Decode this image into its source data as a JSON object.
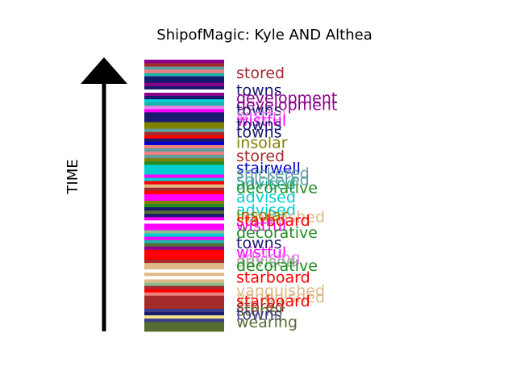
{
  "chart_data": {
    "type": "bar",
    "title": "ShipofMagic: Kyle AND Althea",
    "ylabel": "TIME",
    "orientation": "stacked-column",
    "direction": "bottom-to-top",
    "stripes": [
      {
        "color": "#556b2f",
        "weight": 3
      },
      {
        "color": "#3c3c8c",
        "weight": 1
      },
      {
        "color": "#f0e68c",
        "weight": 1
      },
      {
        "color": "#191970",
        "weight": 1
      },
      {
        "color": "#3c3c8c",
        "weight": 1
      },
      {
        "color": "#a52a2a",
        "weight": 4
      },
      {
        "color": "#f08080",
        "weight": 1
      },
      {
        "color": "#ff0000",
        "weight": 1
      },
      {
        "color": "#a52a2a",
        "weight": 1
      },
      {
        "color": "#8fbc8f",
        "weight": 1
      },
      {
        "color": "#deb887",
        "weight": 1
      },
      {
        "color": "#ffffff",
        "weight": 1
      },
      {
        "color": "#deb887",
        "weight": 1
      },
      {
        "color": "#ffffff",
        "weight": 1
      },
      {
        "color": "#deb887",
        "weight": 2
      },
      {
        "color": "#a52a2a",
        "weight": 1
      },
      {
        "color": "#ff0000",
        "weight": 3
      },
      {
        "color": "#8b008b",
        "weight": 1
      },
      {
        "color": "#556b2f",
        "weight": 1
      },
      {
        "color": "#20b2aa",
        "weight": 1
      },
      {
        "color": "#ff00ff",
        "weight": 1
      },
      {
        "color": "#00ced1",
        "weight": 1
      },
      {
        "color": "#8fbc8f",
        "weight": 1
      },
      {
        "color": "#ff00ff",
        "weight": 2
      },
      {
        "color": "#ffffff",
        "weight": 1
      },
      {
        "color": "#ff00ff",
        "weight": 1
      },
      {
        "color": "#191970",
        "weight": 1
      },
      {
        "color": "#556b2f",
        "weight": 1
      },
      {
        "color": "#191970",
        "weight": 1
      },
      {
        "color": "#228b22",
        "weight": 1
      },
      {
        "color": "#808000",
        "weight": 1
      },
      {
        "color": "#ff00ff",
        "weight": 2
      },
      {
        "color": "#ff0000",
        "weight": 1
      },
      {
        "color": "#a52a2a",
        "weight": 1
      },
      {
        "color": "#deb887",
        "weight": 1
      },
      {
        "color": "#ff0000",
        "weight": 1
      },
      {
        "color": "#00ced1",
        "weight": 1
      },
      {
        "color": "#ff00ff",
        "weight": 1
      },
      {
        "color": "#00ced1",
        "weight": 1
      },
      {
        "color": "#00ced1",
        "weight": 2
      },
      {
        "color": "#228b22",
        "weight": 1
      },
      {
        "color": "#808000",
        "weight": 1
      },
      {
        "color": "#5f9ea0",
        "weight": 1
      },
      {
        "color": "#f08080",
        "weight": 1
      },
      {
        "color": "#5f9ea0",
        "weight": 1
      },
      {
        "color": "#f08080",
        "weight": 1
      },
      {
        "color": "#0000cd",
        "weight": 1
      },
      {
        "color": "#191970",
        "weight": 1
      },
      {
        "color": "#ff0000",
        "weight": 1
      },
      {
        "color": "#a52a2a",
        "weight": 1
      },
      {
        "color": "#5f9ea0",
        "weight": 1
      },
      {
        "color": "#808000",
        "weight": 2
      },
      {
        "color": "#191970",
        "weight": 3
      },
      {
        "color": "#ff00ff",
        "weight": 1
      },
      {
        "color": "#ee82ee",
        "weight": 1
      },
      {
        "color": "#20b2aa",
        "weight": 1
      },
      {
        "color": "#00ced1",
        "weight": 1
      },
      {
        "color": "#191970",
        "weight": 1
      },
      {
        "color": "#8b008b",
        "weight": 1
      },
      {
        "color": "#ffffff",
        "weight": 1
      },
      {
        "color": "#191970",
        "weight": 1
      },
      {
        "color": "#8b008b",
        "weight": 1
      },
      {
        "color": "#191970",
        "weight": 2
      },
      {
        "color": "#20b2aa",
        "weight": 1
      },
      {
        "color": "#f08080",
        "weight": 1
      },
      {
        "color": "#5f9ea0",
        "weight": 1
      },
      {
        "color": "#a52a2a",
        "weight": 1
      },
      {
        "color": "#8b008b",
        "weight": 1
      }
    ],
    "words": [
      {
        "text": "stored",
        "y": 0.04,
        "color": "#a52a2a"
      },
      {
        "text": "towns",
        "y": 0.105,
        "color": "#191970"
      },
      {
        "text": "development",
        "y": 0.135,
        "color": "#8b008b"
      },
      {
        "text": "development",
        "y": 0.16,
        "color": "#8b008b"
      },
      {
        "text": "towns",
        "y": 0.18,
        "color": "#191970"
      },
      {
        "text": "wistful",
        "y": 0.2,
        "color": "#ee82ee"
      },
      {
        "text": "wistful",
        "y": 0.22,
        "color": "#ff00ff"
      },
      {
        "text": "towns",
        "y": 0.235,
        "color": "#191970"
      },
      {
        "text": "towns",
        "y": 0.265,
        "color": "#191970"
      },
      {
        "text": "insolar",
        "y": 0.305,
        "color": "#808000"
      },
      {
        "text": "stored",
        "y": 0.355,
        "color": "#a52a2a"
      },
      {
        "text": "stairwell",
        "y": 0.4,
        "color": "#0000cd"
      },
      {
        "text": "snickered",
        "y": 0.42,
        "color": "#5f9ea0"
      },
      {
        "text": "snickered",
        "y": 0.445,
        "color": "#5f9ea0"
      },
      {
        "text": "advised",
        "y": 0.46,
        "color": "#20b2aa"
      },
      {
        "text": "decorative",
        "y": 0.475,
        "color": "#228b22"
      },
      {
        "text": "advised",
        "y": 0.51,
        "color": "#00ced1"
      },
      {
        "text": "advised",
        "y": 0.56,
        "color": "#00ced1"
      },
      {
        "text": "vanquished",
        "y": 0.585,
        "color": "#deb887"
      },
      {
        "text": "insolar",
        "y": 0.58,
        "color": "#808000"
      },
      {
        "text": "starboard",
        "y": 0.6,
        "color": "#ff0000"
      },
      {
        "text": "wistful",
        "y": 0.62,
        "color": "#ff00ff"
      },
      {
        "text": "decorative",
        "y": 0.645,
        "color": "#228b22"
      },
      {
        "text": "towns",
        "y": 0.685,
        "color": "#191970"
      },
      {
        "text": "wistful",
        "y": 0.72,
        "color": "#ff00ff"
      },
      {
        "text": "advising",
        "y": 0.74,
        "color": "#ee82ee"
      },
      {
        "text": "advised",
        "y": 0.755,
        "color": "#8fbc8f"
      },
      {
        "text": "decorative",
        "y": 0.77,
        "color": "#228b22"
      },
      {
        "text": "starboard",
        "y": 0.815,
        "color": "#ff0000"
      },
      {
        "text": "vanquished",
        "y": 0.865,
        "color": "#deb887"
      },
      {
        "text": "vanquished",
        "y": 0.89,
        "color": "#deb887"
      },
      {
        "text": "starboard",
        "y": 0.905,
        "color": "#ff0000"
      },
      {
        "text": "stored",
        "y": 0.925,
        "color": "#a52a2a"
      },
      {
        "text": "stoner",
        "y": 0.94,
        "color": "#556b2f"
      },
      {
        "text": "towns",
        "y": 0.955,
        "color": "#3c3c8c"
      },
      {
        "text": "wearing",
        "y": 0.985,
        "color": "#556b2f"
      }
    ]
  }
}
